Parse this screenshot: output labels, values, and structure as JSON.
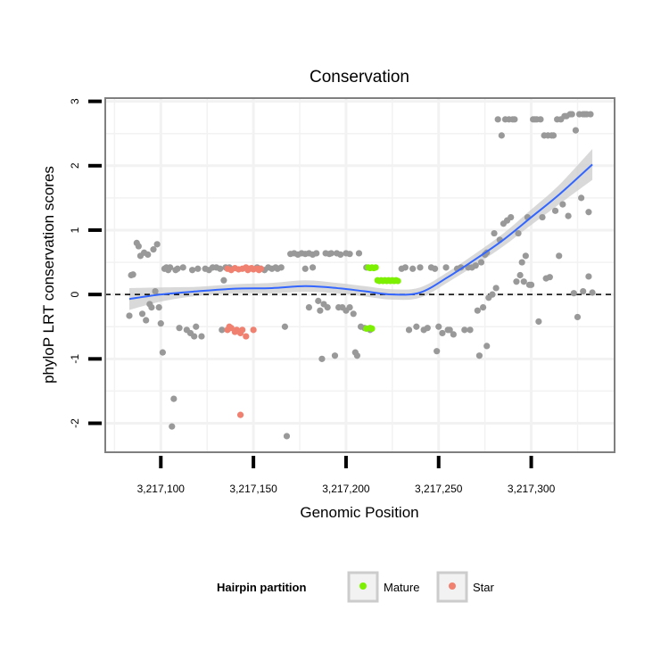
{
  "chart_data": {
    "type": "scatter",
    "title": "Conservation",
    "xlabel": "Genomic Position",
    "ylabel": "phyloP LRT conservation scores",
    "xlim": [
      3217070,
      3217345
    ],
    "ylim": [
      -2.45,
      3.05
    ],
    "x_ticks": [
      3217100,
      3217150,
      3217200,
      3217250,
      3217300
    ],
    "x_tick_labels": [
      "3,217,100",
      "3,217,150",
      "3,217,200",
      "3,217,250",
      "3,217,300"
    ],
    "y_ticks": [
      -2,
      -1,
      0,
      1,
      2,
      3
    ],
    "y_tick_labels": [
      "-2",
      "-1",
      "0",
      "1",
      "2",
      "3"
    ],
    "reference_line": {
      "y": 0,
      "style": "dashed"
    },
    "legend": {
      "title": "Hairpin partition",
      "entries": [
        {
          "label": "Mature",
          "color": "#7cf000"
        },
        {
          "label": "Star",
          "color": "#f08070"
        }
      ]
    },
    "colors": {
      "other": "#999999",
      "mature": "#7cf000",
      "star": "#f08070",
      "smooth": "#3366ff",
      "band": "#cccccc",
      "panel_border": "#7f7f7f",
      "grid": "#f2f2f2"
    },
    "series": [
      {
        "name": "Other",
        "points": [
          [
            3217083,
            -0.33
          ],
          [
            3217084,
            0.3
          ],
          [
            3217085,
            0.31
          ],
          [
            3217087,
            0.8
          ],
          [
            3217088,
            0.75
          ],
          [
            3217089,
            0.6
          ],
          [
            3217090,
            -0.3
          ],
          [
            3217091,
            0.65
          ],
          [
            3217092,
            -0.4
          ],
          [
            3217093,
            0.62
          ],
          [
            3217094,
            -0.15
          ],
          [
            3217095,
            -0.2
          ],
          [
            3217096,
            0.7
          ],
          [
            3217097,
            0.05
          ],
          [
            3217098,
            0.78
          ],
          [
            3217099,
            -0.2
          ],
          [
            3217100,
            -0.45
          ],
          [
            3217101,
            -0.9
          ],
          [
            3217102,
            0.4
          ],
          [
            3217103,
            0.42
          ],
          [
            3217104,
            0.38
          ],
          [
            3217105,
            0.42
          ],
          [
            3217106,
            -2.05
          ],
          [
            3217107,
            -1.62
          ],
          [
            3217108,
            0.38
          ],
          [
            3217109,
            0.4
          ],
          [
            3217110,
            -0.52
          ],
          [
            3217112,
            0.42
          ],
          [
            3217114,
            -0.55
          ],
          [
            3217116,
            -0.6
          ],
          [
            3217117,
            0.38
          ],
          [
            3217118,
            -0.65
          ],
          [
            3217119,
            -0.5
          ],
          [
            3217120,
            0.4
          ],
          [
            3217122,
            -0.65
          ],
          [
            3217124,
            0.4
          ],
          [
            3217126,
            0.38
          ],
          [
            3217128,
            0.42
          ],
          [
            3217130,
            0.42
          ],
          [
            3217132,
            0.4
          ],
          [
            3217133,
            -0.55
          ],
          [
            3217134,
            0.22
          ],
          [
            3217135,
            0.42
          ],
          [
            3217137,
            0.42
          ],
          [
            3217152,
            0.42
          ],
          [
            3217154,
            0.4
          ],
          [
            3217156,
            0.38
          ],
          [
            3217158,
            0.42
          ],
          [
            3217160,
            0.4
          ],
          [
            3217162,
            0.42
          ],
          [
            3217163,
            0.4
          ],
          [
            3217165,
            0.42
          ],
          [
            3217167,
            -0.5
          ],
          [
            3217168,
            -2.2
          ],
          [
            3217170,
            0.63
          ],
          [
            3217172,
            0.64
          ],
          [
            3217174,
            0.62
          ],
          [
            3217176,
            0.64
          ],
          [
            3217178,
            0.63
          ],
          [
            3217180,
            0.64
          ],
          [
            3217182,
            0.62
          ],
          [
            3217184,
            0.64
          ],
          [
            3217178,
            0.4
          ],
          [
            3217182,
            0.42
          ],
          [
            3217180,
            -0.2
          ],
          [
            3217185,
            -0.1
          ],
          [
            3217186,
            -0.25
          ],
          [
            3217188,
            -0.15
          ],
          [
            3217190,
            -0.2
          ],
          [
            3217187,
            -1.0
          ],
          [
            3217189,
            0.64
          ],
          [
            3217191,
            0.63
          ],
          [
            3217192,
            0.64
          ],
          [
            3217194,
            -0.95
          ],
          [
            3217195,
            0.64
          ],
          [
            3217196,
            -0.2
          ],
          [
            3217197,
            0.62
          ],
          [
            3217198,
            -0.2
          ],
          [
            3217200,
            -0.25
          ],
          [
            3217200,
            0.64
          ],
          [
            3217202,
            0.63
          ],
          [
            3217202,
            -0.2
          ],
          [
            3217204,
            -0.3
          ],
          [
            3217205,
            -0.9
          ],
          [
            3217206,
            -0.95
          ],
          [
            3217207,
            0.64
          ],
          [
            3217208,
            -0.5
          ],
          [
            3217210,
            -0.52
          ],
          [
            3217211,
            0.42
          ],
          [
            3217213,
            -0.55
          ],
          [
            3217230,
            0.4
          ],
          [
            3217232,
            0.42
          ],
          [
            3217234,
            -0.55
          ],
          [
            3217236,
            0.4
          ],
          [
            3217238,
            -0.5
          ],
          [
            3217240,
            0.42
          ],
          [
            3217242,
            -0.55
          ],
          [
            3217244,
            -0.52
          ],
          [
            3217246,
            0.42
          ],
          [
            3217248,
            0.4
          ],
          [
            3217249,
            -0.88
          ],
          [
            3217250,
            -0.5
          ],
          [
            3217252,
            -0.6
          ],
          [
            3217254,
            0.42
          ],
          [
            3217255,
            -0.55
          ],
          [
            3217256,
            -0.55
          ],
          [
            3217258,
            -0.62
          ],
          [
            3217260,
            0.4
          ],
          [
            3217262,
            0.42
          ],
          [
            3217264,
            -0.55
          ],
          [
            3217266,
            0.42
          ],
          [
            3217267,
            -0.55
          ],
          [
            3217268,
            0.42
          ],
          [
            3217270,
            0.45
          ],
          [
            3217271,
            -0.25
          ],
          [
            3217272,
            -0.95
          ],
          [
            3217273,
            0.5
          ],
          [
            3217274,
            -0.2
          ],
          [
            3217275,
            0.62
          ],
          [
            3217276,
            -0.8
          ],
          [
            3217276,
            0.65
          ],
          [
            3217277,
            -0.05
          ],
          [
            3217279,
            0.0
          ],
          [
            3217280,
            0.95
          ],
          [
            3217281,
            0.1
          ],
          [
            3217282,
            2.72
          ],
          [
            3217283,
            0.85
          ],
          [
            3217284,
            2.47
          ],
          [
            3217285,
            1.1
          ],
          [
            3217286,
            2.72
          ],
          [
            3217287,
            1.15
          ],
          [
            3217288,
            2.72
          ],
          [
            3217289,
            1.2
          ],
          [
            3217290,
            2.72
          ],
          [
            3217291,
            2.72
          ],
          [
            3217292,
            0.2
          ],
          [
            3217293,
            0.95
          ],
          [
            3217294,
            0.3
          ],
          [
            3217295,
            0.5
          ],
          [
            3217296,
            0.2
          ],
          [
            3217297,
            0.6
          ],
          [
            3217298,
            1.2
          ],
          [
            3217299,
            0.15
          ],
          [
            3217300,
            0.15
          ],
          [
            3217301,
            2.72
          ],
          [
            3217302,
            2.72
          ],
          [
            3217303,
            2.72
          ],
          [
            3217304,
            -0.42
          ],
          [
            3217305,
            2.72
          ],
          [
            3217306,
            1.2
          ],
          [
            3217307,
            2.47
          ],
          [
            3217308,
            0.25
          ],
          [
            3217309,
            2.47
          ],
          [
            3217310,
            0.27
          ],
          [
            3217311,
            2.47
          ],
          [
            3217312,
            2.47
          ],
          [
            3217313,
            1.3
          ],
          [
            3217314,
            2.72
          ],
          [
            3217315,
            0.6
          ],
          [
            3217316,
            2.72
          ],
          [
            3217317,
            1.4
          ],
          [
            3217318,
            2.77
          ],
          [
            3217319,
            2.77
          ],
          [
            3217320,
            1.22
          ],
          [
            3217321,
            2.8
          ],
          [
            3217322,
            2.8
          ],
          [
            3217323,
            0.02
          ],
          [
            3217324,
            2.55
          ],
          [
            3217325,
            -0.35
          ],
          [
            3217326,
            2.8
          ],
          [
            3217327,
            1.5
          ],
          [
            3217328,
            2.8
          ],
          [
            3217328,
            0.05
          ],
          [
            3217329,
            2.8
          ],
          [
            3217330,
            2.8
          ],
          [
            3217331,
            0.28
          ],
          [
            3217331,
            1.28
          ],
          [
            3217332,
            2.8
          ],
          [
            3217333,
            0.03
          ]
        ]
      },
      {
        "name": "Mature",
        "points": [
          [
            3217212,
            0.42
          ],
          [
            3217213,
            0.41
          ],
          [
            3217214,
            0.42
          ],
          [
            3217215,
            0.41
          ],
          [
            3217216,
            0.42
          ],
          [
            3217211,
            -0.53
          ],
          [
            3217213,
            -0.52
          ],
          [
            3217214,
            -0.53
          ],
          [
            3217217,
            0.22
          ],
          [
            3217218,
            0.21
          ],
          [
            3217219,
            0.22
          ],
          [
            3217220,
            0.21
          ],
          [
            3217221,
            0.22
          ],
          [
            3217222,
            0.21
          ],
          [
            3217223,
            0.22
          ],
          [
            3217224,
            0.21
          ],
          [
            3217225,
            0.22
          ],
          [
            3217226,
            0.21
          ],
          [
            3217227,
            0.22
          ],
          [
            3217228,
            0.21
          ]
        ]
      },
      {
        "name": "Star",
        "points": [
          [
            3217136,
            0.4
          ],
          [
            3217138,
            0.38
          ],
          [
            3217140,
            0.41
          ],
          [
            3217142,
            0.39
          ],
          [
            3217144,
            0.4
          ],
          [
            3217146,
            0.42
          ],
          [
            3217147,
            0.38
          ],
          [
            3217148,
            0.4
          ],
          [
            3217149,
            0.41
          ],
          [
            3217150,
            0.39
          ],
          [
            3217152,
            0.4
          ],
          [
            3217153,
            0.38
          ],
          [
            3217154,
            0.4
          ],
          [
            3217136,
            -0.55
          ],
          [
            3217137,
            -0.5
          ],
          [
            3217138,
            -0.52
          ],
          [
            3217140,
            -0.58
          ],
          [
            3217141,
            -0.55
          ],
          [
            3217143,
            -0.6
          ],
          [
            3217144,
            -0.55
          ],
          [
            3217146,
            -0.65
          ],
          [
            3217150,
            -0.55
          ],
          [
            3217143,
            -1.87
          ]
        ]
      }
    ],
    "smooth_line": {
      "x": [
        3217083,
        3217100,
        3217120,
        3217140,
        3217160,
        3217178,
        3217195,
        3217210,
        3217225,
        3217240,
        3217255,
        3217270,
        3217285,
        3217300,
        3217315,
        3217333
      ],
      "y": [
        -0.07,
        0.0,
        0.05,
        0.09,
        0.1,
        0.13,
        0.1,
        0.05,
        0.0,
        0.03,
        0.27,
        0.55,
        0.85,
        1.2,
        1.55,
        2.02
      ],
      "band_halfwidth": [
        0.17,
        0.11,
        0.07,
        0.07,
        0.08,
        0.09,
        0.08,
        0.08,
        0.08,
        0.08,
        0.08,
        0.09,
        0.1,
        0.12,
        0.15,
        0.24
      ]
    }
  }
}
